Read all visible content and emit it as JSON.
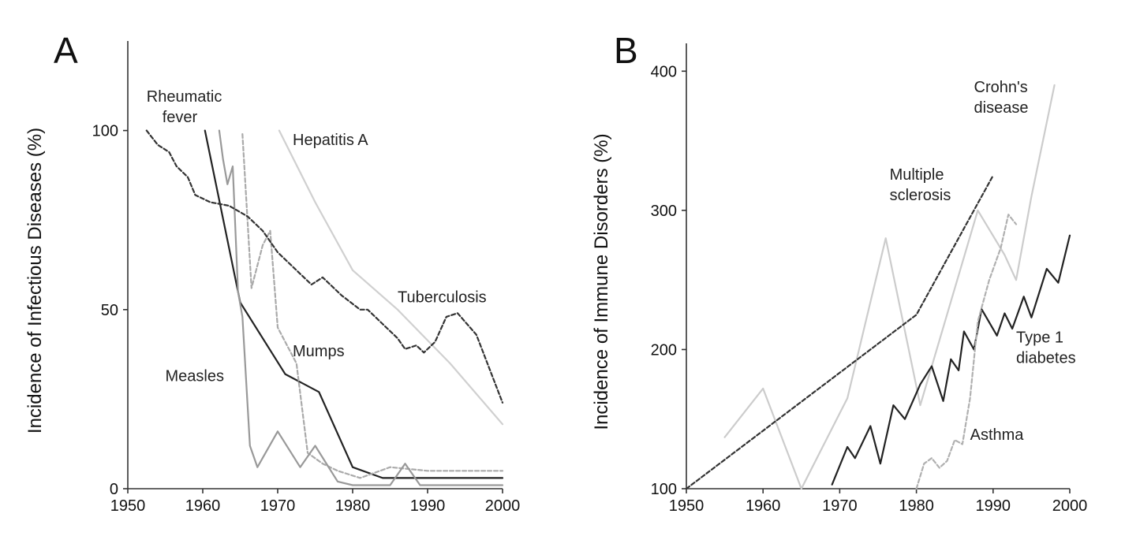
{
  "chart_data": [
    {
      "type": "line",
      "panel_label": "A",
      "title": "",
      "xlabel": "",
      "ylabel": "Incidence of Infectious Diseases (%)",
      "xlim": [
        1950,
        2000
      ],
      "ylim": [
        0,
        125
      ],
      "x_ticks": [
        "1950",
        "1960",
        "1970",
        "1980",
        "1990",
        "2000"
      ],
      "y_ticks": [
        "0",
        "50",
        "100"
      ],
      "grid": false,
      "legend": "none",
      "series": [
        {
          "name": "Rheumatic fever",
          "color": "#222222",
          "dash": "solid",
          "points": [
            [
              1960.3,
              100
            ],
            [
              1965,
              52
            ],
            [
              1971,
              32
            ],
            [
              1975.5,
              27
            ],
            [
              1980,
              6
            ],
            [
              1984,
              3
            ],
            [
              2000,
              3
            ]
          ]
        },
        {
          "name": "Mumps",
          "color": "#aaaaaa",
          "dash": "dashed",
          "points": [
            [
              1965.3,
              99
            ],
            [
              1966.5,
              56
            ],
            [
              1968,
              68
            ],
            [
              1969,
              72
            ],
            [
              1970,
              45
            ],
            [
              1972.5,
              35
            ],
            [
              1974,
              10
            ],
            [
              1976,
              7
            ],
            [
              1978,
              5
            ],
            [
              1981,
              3
            ],
            [
              1985,
              6
            ],
            [
              1990,
              5
            ],
            [
              2000,
              5
            ]
          ]
        },
        {
          "name": "Measles",
          "color": "#999999",
          "dash": "solid",
          "points": [
            [
              1962.2,
              100
            ],
            [
              1962.7,
              92
            ],
            [
              1963.3,
              85
            ],
            [
              1964,
              90
            ],
            [
              1964.7,
              55
            ],
            [
              1965.3,
              48
            ],
            [
              1966.3,
              12
            ],
            [
              1967.3,
              6
            ],
            [
              1970,
              16
            ],
            [
              1973,
              6
            ],
            [
              1975,
              12
            ],
            [
              1978,
              2
            ],
            [
              1980,
              1
            ],
            [
              1985,
              1
            ],
            [
              1987,
              7
            ],
            [
              1989,
              1
            ],
            [
              2000,
              1
            ]
          ]
        },
        {
          "name": "Hepatitis A",
          "color": "#d0d0d0",
          "dash": "solid",
          "points": [
            [
              1970.2,
              100
            ],
            [
              1975,
              80
            ],
            [
              1980,
              61
            ],
            [
              1986,
              50
            ],
            [
              1993,
              35
            ],
            [
              2000,
              18
            ]
          ]
        },
        {
          "name": "Tuberculosis",
          "color": "#333333",
          "dash": "dashed",
          "points": [
            [
              1952.5,
              100
            ],
            [
              1954,
              96
            ],
            [
              1955.5,
              94
            ],
            [
              1956.5,
              90
            ],
            [
              1958,
              87
            ],
            [
              1959,
              82
            ],
            [
              1961,
              80
            ],
            [
              1963.5,
              79
            ],
            [
              1966,
              76
            ],
            [
              1968,
              72
            ],
            [
              1970,
              66
            ],
            [
              1973,
              60
            ],
            [
              1974.5,
              57
            ],
            [
              1976,
              59
            ],
            [
              1978.5,
              54
            ],
            [
              1981,
              50
            ],
            [
              1982,
              50
            ],
            [
              1984,
              46
            ],
            [
              1986,
              42
            ],
            [
              1987,
              39
            ],
            [
              1988.5,
              40
            ],
            [
              1989.5,
              38
            ],
            [
              1991,
              41
            ],
            [
              1992.5,
              48
            ],
            [
              1994,
              49
            ],
            [
              1996.5,
              43
            ],
            [
              2000,
              24
            ]
          ]
        }
      ],
      "annotations": [
        {
          "lines": [
            "Rheumatic",
            "fever"
          ],
          "x": 1952.5,
          "y": 108
        },
        {
          "lines": [
            "Hepatitis A"
          ],
          "x": 1972,
          "y": 96
        },
        {
          "lines": [
            "Tuberculosis"
          ],
          "x": 1986,
          "y": 52
        },
        {
          "lines": [
            "Mumps"
          ],
          "x": 1972,
          "y": 37
        },
        {
          "lines": [
            "Measles"
          ],
          "x": 1955,
          "y": 30
        }
      ]
    },
    {
      "type": "line",
      "panel_label": "B",
      "title": "",
      "xlabel": "",
      "ylabel": "Incidence of Immune Disorders (%)",
      "xlim": [
        1950,
        2000
      ],
      "ylim": [
        100,
        420
      ],
      "x_ticks": [
        "1950",
        "1960",
        "1970",
        "1980",
        "1990",
        "2000"
      ],
      "y_ticks": [
        "100",
        "200",
        "300",
        "400"
      ],
      "grid": false,
      "legend": "none",
      "series": [
        {
          "name": "Crohn's disease",
          "color": "#cccccc",
          "dash": "solid",
          "points": [
            [
              1955,
              137
            ],
            [
              1960,
              172
            ],
            [
              1965,
              100
            ],
            [
              1971,
              165
            ],
            [
              1976,
              280
            ],
            [
              1980.5,
              160
            ],
            [
              1988,
              300
            ],
            [
              1991.5,
              268
            ],
            [
              1993,
              250
            ],
            [
              1995,
              310
            ],
            [
              1998,
              390
            ]
          ]
        },
        {
          "name": "Multiple sclerosis",
          "color": "#333333",
          "dash": "dashed",
          "points": [
            [
              1950,
              100
            ],
            [
              1980,
              225
            ],
            [
              1990,
              325
            ]
          ]
        },
        {
          "name": "Type 1 diabetes",
          "color": "#222222",
          "dash": "solid",
          "points": [
            [
              1969,
              103
            ],
            [
              1971,
              130
            ],
            [
              1972,
              122
            ],
            [
              1974,
              145
            ],
            [
              1975.3,
              118
            ],
            [
              1977,
              160
            ],
            [
              1978.5,
              150
            ],
            [
              1980.5,
              175
            ],
            [
              1982,
              188
            ],
            [
              1983.5,
              163
            ],
            [
              1984.5,
              193
            ],
            [
              1985.5,
              185
            ],
            [
              1986.2,
              213
            ],
            [
              1987.5,
              200
            ],
            [
              1988.5,
              229
            ],
            [
              1990.5,
              210
            ],
            [
              1991.5,
              226
            ],
            [
              1992.5,
              215
            ],
            [
              1994,
              238
            ],
            [
              1995,
              223
            ],
            [
              1997,
              258
            ],
            [
              1998.5,
              248
            ],
            [
              2000,
              282
            ]
          ]
        },
        {
          "name": "Asthma",
          "color": "#b0b0b0",
          "dash": "dashed",
          "points": [
            [
              1980,
              100
            ],
            [
              1981,
              118
            ],
            [
              1982,
              122
            ],
            [
              1983,
              115
            ],
            [
              1984,
              120
            ],
            [
              1985,
              135
            ],
            [
              1986,
              132
            ],
            [
              1987,
              165
            ],
            [
              1988,
              220
            ],
            [
              1989.5,
              250
            ],
            [
              1991,
              273
            ],
            [
              1992,
              297
            ],
            [
              1993,
              290
            ]
          ]
        }
      ],
      "annotations": [
        {
          "lines": [
            "Crohn's",
            "disease"
          ],
          "x": 1987.5,
          "y": 385
        },
        {
          "lines": [
            "Multiple",
            "sclerosis"
          ],
          "x": 1976.5,
          "y": 322
        },
        {
          "lines": [
            "Type 1",
            "diabetes"
          ],
          "x": 1993,
          "y": 205
        },
        {
          "lines": [
            "Asthma"
          ],
          "x": 1987,
          "y": 135
        }
      ]
    }
  ]
}
